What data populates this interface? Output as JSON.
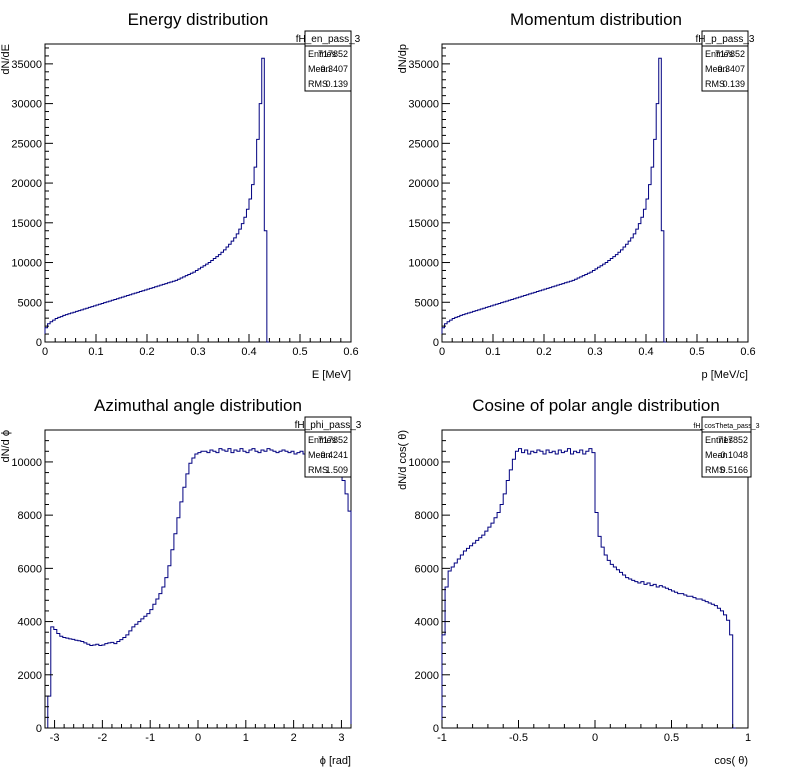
{
  "chart_data": [
    {
      "type": "histogram",
      "title": "Energy distribution",
      "xlabel": "E [MeV]",
      "ylabel": "dN/dE",
      "xlim": [
        0,
        0.6
      ],
      "ylim": [
        0,
        37500
      ],
      "xticks": [
        0,
        0.1,
        0.2,
        0.3,
        0.4,
        0.5,
        0.6
      ],
      "xtick_labels": [
        "0",
        "0.1",
        "0.2",
        "0.3",
        "0.4",
        "0.5",
        "0.6"
      ],
      "yticks": [
        0,
        5000,
        10000,
        15000,
        20000,
        25000,
        30000,
        35000
      ],
      "ytick_labels": [
        "0",
        "5000",
        "10000",
        "15000",
        "20000",
        "25000",
        "30000",
        "35000"
      ],
      "bin_width": 0.005,
      "x_start": 0,
      "values": [
        1800,
        2300,
        2550,
        2750,
        2950,
        3100,
        3200,
        3350,
        3450,
        3550,
        3650,
        3750,
        3850,
        3950,
        4050,
        4150,
        4250,
        4350,
        4450,
        4550,
        4650,
        4750,
        4850,
        4950,
        5050,
        5150,
        5250,
        5350,
        5450,
        5550,
        5650,
        5750,
        5850,
        5950,
        6050,
        6150,
        6250,
        6350,
        6450,
        6550,
        6650,
        6750,
        6850,
        6950,
        7050,
        7150,
        7250,
        7350,
        7450,
        7550,
        7650,
        7750,
        7900,
        8050,
        8200,
        8350,
        8500,
        8650,
        8800,
        9000,
        9200,
        9400,
        9600,
        9800,
        10000,
        10250,
        10500,
        10750,
        11000,
        11300,
        11600,
        11950,
        12300,
        12700,
        13100,
        13600,
        14200,
        14900,
        15700,
        16700,
        18000,
        19800,
        22000,
        25500,
        30000,
        35700,
        14000,
        0
      ],
      "stats": {
        "name": "fH_en_pass_3",
        "rows": [
          {
            "label": "Entries",
            "value": "717852"
          },
          {
            "label": "Mean",
            "value": "0.3407"
          },
          {
            "label": "RMS",
            "value": "0.139"
          }
        ]
      }
    },
    {
      "type": "histogram",
      "title": "Momentum distribution",
      "xlabel": "p [MeV/c]",
      "ylabel": "dN/dp",
      "xlim": [
        0,
        0.6
      ],
      "ylim": [
        0,
        37500
      ],
      "xticks": [
        0,
        0.1,
        0.2,
        0.3,
        0.4,
        0.5,
        0.6
      ],
      "xtick_labels": [
        "0",
        "0.1",
        "0.2",
        "0.3",
        "0.4",
        "0.5",
        "0.6"
      ],
      "yticks": [
        0,
        5000,
        10000,
        15000,
        20000,
        25000,
        30000,
        35000
      ],
      "ytick_labels": [
        "0",
        "5000",
        "10000",
        "15000",
        "20000",
        "25000",
        "30000",
        "35000"
      ],
      "bin_width": 0.005,
      "x_start": 0,
      "values": [
        1800,
        2300,
        2550,
        2750,
        2950,
        3100,
        3200,
        3350,
        3450,
        3550,
        3650,
        3750,
        3850,
        3950,
        4050,
        4150,
        4250,
        4350,
        4450,
        4550,
        4650,
        4750,
        4850,
        4950,
        5050,
        5150,
        5250,
        5350,
        5450,
        5550,
        5650,
        5750,
        5850,
        5950,
        6050,
        6150,
        6250,
        6350,
        6450,
        6550,
        6650,
        6750,
        6850,
        6950,
        7050,
        7150,
        7250,
        7350,
        7450,
        7550,
        7650,
        7750,
        7900,
        8050,
        8200,
        8350,
        8500,
        8650,
        8800,
        9000,
        9200,
        9400,
        9600,
        9800,
        10000,
        10250,
        10500,
        10750,
        11000,
        11300,
        11600,
        11950,
        12300,
        12700,
        13100,
        13600,
        14200,
        14900,
        15700,
        16700,
        18000,
        19800,
        22000,
        25500,
        30000,
        35700,
        14000,
        0
      ],
      "stats": {
        "name": "fH_p_pass_3",
        "rows": [
          {
            "label": "Entries",
            "value": "717852"
          },
          {
            "label": "Mean",
            "value": "0.3407"
          },
          {
            "label": "RMS",
            "value": "0.139"
          }
        ]
      }
    },
    {
      "type": "histogram",
      "title": "Azimuthal angle distribution",
      "xlabel": "ϕ [rad]",
      "ylabel": "dN/d ϕ",
      "xlim": [
        -3.2,
        3.2
      ],
      "ylim": [
        0,
        11200
      ],
      "xticks": [
        -3,
        -2,
        -1,
        0,
        1,
        2,
        3
      ],
      "xtick_labels": [
        "-3",
        "-2",
        "-1",
        "0",
        "1",
        "2",
        "3"
      ],
      "yticks": [
        0,
        2000,
        4000,
        6000,
        8000,
        10000
      ],
      "ytick_labels": [
        "0",
        "2000",
        "4000",
        "6000",
        "8000",
        "10000"
      ],
      "bin_width": 0.0628,
      "x_start": -3.1416,
      "values": [
        1200,
        3800,
        3700,
        3550,
        3450,
        3400,
        3380,
        3350,
        3330,
        3300,
        3280,
        3250,
        3200,
        3150,
        3100,
        3120,
        3150,
        3100,
        3120,
        3170,
        3200,
        3220,
        3170,
        3250,
        3320,
        3400,
        3500,
        3650,
        3800,
        3900,
        4000,
        4100,
        4200,
        4300,
        4450,
        4650,
        4850,
        5050,
        5300,
        5650,
        6100,
        6700,
        7300,
        7900,
        8500,
        9050,
        9550,
        9950,
        10150,
        10300,
        10350,
        10400,
        10400,
        10350,
        10450,
        10400,
        10350,
        10500,
        10450,
        10400,
        10500,
        10350,
        10450,
        10400,
        10500,
        10400,
        10350,
        10450,
        10500,
        10400,
        10350,
        10450,
        10400,
        10500,
        10450,
        10400,
        10350,
        10400,
        10450,
        10400,
        10350,
        10400,
        10300,
        10350,
        10400,
        10300,
        10350,
        10300,
        10250,
        10300,
        10200,
        10300,
        10250,
        10300,
        10200,
        10100,
        9950,
        9700,
        9300,
        8800,
        8150,
        7500,
        6850,
        6300,
        5800,
        5500,
        5200,
        5000,
        4800,
        4650,
        4450,
        4300,
        4150,
        4000,
        3850,
        3700,
        3500,
        3300,
        3100,
        3000,
        2900,
        2700,
        2400,
        1800,
        1200,
        500
      ],
      "stats": {
        "name": "fH_phi_pass_3",
        "rows": [
          {
            "label": "Entries",
            "value": "717852"
          },
          {
            "label": "Mean",
            "value": "0.4241"
          },
          {
            "label": "RMS",
            "value": "1.509"
          }
        ]
      }
    },
    {
      "type": "histogram",
      "title": "Cosine of polar angle distribution",
      "xlabel": "cos( θ)",
      "ylabel": "dN/d cos( θ)",
      "xlim": [
        -1,
        1
      ],
      "ylim": [
        0,
        11200
      ],
      "xticks": [
        -1,
        -0.5,
        0,
        0.5,
        1
      ],
      "xtick_labels": [
        "-1",
        "-0.5",
        "0",
        "0.5",
        "1"
      ],
      "yticks": [
        0,
        2000,
        4000,
        6000,
        8000,
        10000
      ],
      "ytick_labels": [
        "0",
        "2000",
        "4000",
        "6000",
        "8000",
        "10000"
      ],
      "bin_width": 0.02,
      "x_start": -1,
      "values": [
        3500,
        5300,
        5900,
        6050,
        6200,
        6350,
        6500,
        6650,
        6750,
        6850,
        6950,
        7050,
        7150,
        7250,
        7400,
        7550,
        7700,
        7900,
        8100,
        8400,
        8800,
        9300,
        9700,
        10100,
        10400,
        10500,
        10350,
        10450,
        10300,
        10400,
        10350,
        10450,
        10400,
        10300,
        10450,
        10350,
        10400,
        10300,
        10450,
        10350,
        10400,
        10500,
        10300,
        10400,
        10350,
        10450,
        10300,
        10400,
        10500,
        10350,
        8100,
        7200,
        6800,
        6500,
        6300,
        6150,
        6050,
        5950,
        5850,
        5750,
        5650,
        5600,
        5550,
        5500,
        5450,
        5500,
        5400,
        5450,
        5350,
        5400,
        5300,
        5350,
        5300,
        5250,
        5200,
        5150,
        5100,
        5050,
        5050,
        5000,
        4950,
        4950,
        4900,
        4850,
        4850,
        4800,
        4750,
        4700,
        4650,
        4600,
        4500,
        4400,
        4250,
        4050,
        3500,
        0
      ],
      "stats": {
        "name": "fH_cosTheta_pass_3",
        "rows": [
          {
            "label": "Entries",
            "value": "717852"
          },
          {
            "label": "Mean",
            "value": "-0.1048"
          },
          {
            "label": "RMS",
            "value": "0.5166"
          }
        ]
      }
    }
  ]
}
